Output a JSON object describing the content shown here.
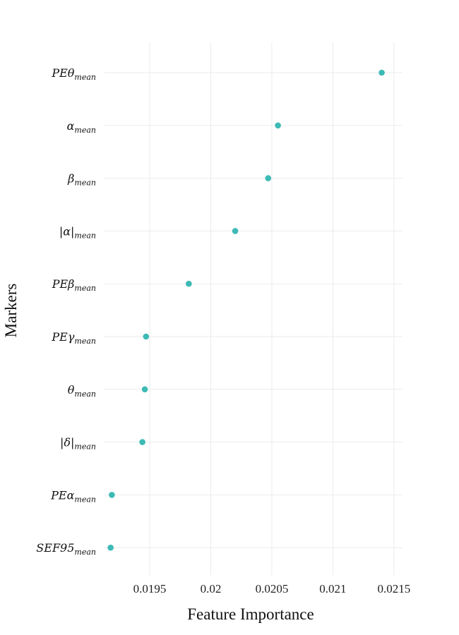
{
  "chart_data": {
    "type": "scatter",
    "xlabel": "Feature Importance",
    "ylabel": "Markers",
    "xlim": [
      0.01913,
      0.02157
    ],
    "xticks": [
      0.0195,
      0.02,
      0.0205,
      0.021,
      0.0215
    ],
    "xtick_labels": [
      "0.0195",
      "0.02",
      "0.0205",
      "0.021",
      "0.0215"
    ],
    "grid": true,
    "point_color": "#3dbab5",
    "categories": [
      {
        "base": "PEθ",
        "sub": "mean"
      },
      {
        "base": "α",
        "sub": "mean"
      },
      {
        "base": "β",
        "sub": "mean"
      },
      {
        "base": "|α|",
        "sub": "mean"
      },
      {
        "base": "PEβ",
        "sub": "mean"
      },
      {
        "base": "PEγ",
        "sub": "mean"
      },
      {
        "base": "θ",
        "sub": "mean"
      },
      {
        "base": "|δ|",
        "sub": "mean"
      },
      {
        "base": "PEα",
        "sub": "mean"
      },
      {
        "base": "SEF95",
        "sub": "mean"
      }
    ],
    "values": [
      0.0214,
      0.02055,
      0.02047,
      0.0202,
      0.01982,
      0.01947,
      0.01946,
      0.01944,
      0.01919,
      0.01918
    ]
  }
}
